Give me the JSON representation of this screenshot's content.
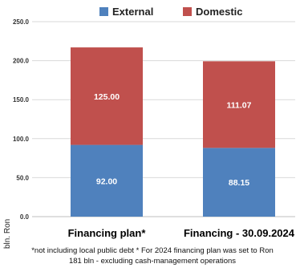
{
  "chart_data": {
    "type": "bar",
    "stacked": true,
    "categories": [
      "Financing plan*",
      "Financing - 30.09.2024"
    ],
    "series": [
      {
        "name": "External",
        "values": [
          92.0,
          88.15
        ],
        "color": "#4f81bd",
        "labels": [
          "92.00",
          "88.15"
        ]
      },
      {
        "name": "Domestic",
        "values": [
          125.0,
          111.07
        ],
        "color": "#c0504d",
        "labels": [
          "125.00",
          "111.07"
        ]
      }
    ],
    "ylim": [
      0,
      250
    ],
    "yticks": [
      "0.0",
      "50.0",
      "100.0",
      "150.0",
      "200.0",
      "250.0"
    ],
    "ylabel": "bln. Ron",
    "grid": "horizontal",
    "legend": "top"
  },
  "footnote": "*not including local public debt  * For 2024 financing plan was set to Ron 181 bln - excluding cash-management operations"
}
